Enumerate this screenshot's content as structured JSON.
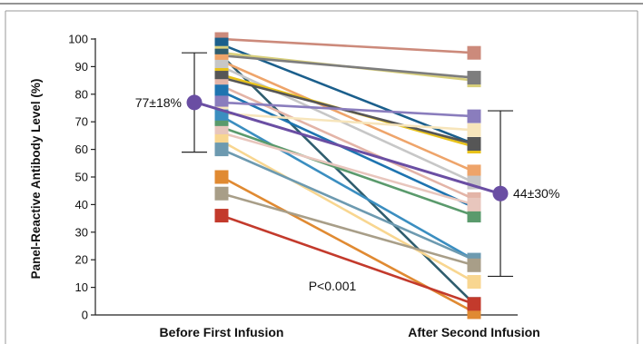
{
  "chart_data": {
    "type": "line",
    "title": "",
    "xlabel": "",
    "ylabel": "Panel-Reactive Antibody Level (%)",
    "categories": [
      "Before First Infusion",
      "After Second Infusion"
    ],
    "ylim": [
      0,
      100
    ],
    "yticks": [
      0,
      10,
      20,
      30,
      40,
      50,
      60,
      70,
      80,
      90,
      100
    ],
    "grid": false,
    "series": [
      {
        "values": [
          100,
          95
        ],
        "color": "#cc8a7b"
      },
      {
        "values": [
          98,
          62
        ],
        "color": "#1b5f8c"
      },
      {
        "values": [
          95,
          85
        ],
        "color": "#d8cf7a"
      },
      {
        "values": [
          94,
          86
        ],
        "color": "#7d7d7d"
      },
      {
        "values": [
          94,
          4
        ],
        "color": "#2f5d6e"
      },
      {
        "values": [
          92,
          52
        ],
        "color": "#eea46a"
      },
      {
        "values": [
          90,
          48
        ],
        "color": "#c7c7c7"
      },
      {
        "values": [
          87,
          61
        ],
        "color": "#e8c21a"
      },
      {
        "values": [
          86,
          62
        ],
        "color": "#565656"
      },
      {
        "values": [
          83,
          42
        ],
        "color": "#e3b4a7"
      },
      {
        "values": [
          81,
          39
        ],
        "color": "#1e74b0"
      },
      {
        "values": [
          77,
          72
        ],
        "color": "#8a7dbd"
      },
      {
        "values": [
          73,
          67
        ],
        "color": "#f7e5bb"
      },
      {
        "values": [
          72,
          20
        ],
        "color": "#3b8ec0"
      },
      {
        "values": [
          68,
          36
        ],
        "color": "#5a9a6c"
      },
      {
        "values": [
          66,
          40
        ],
        "color": "#e8c6bd"
      },
      {
        "values": [
          63,
          12
        ],
        "color": "#f8d690"
      },
      {
        "values": [
          60,
          20
        ],
        "color": "#6d9ab0"
      },
      {
        "values": [
          50,
          1
        ],
        "color": "#e08a32"
      },
      {
        "values": [
          44,
          18
        ],
        "color": "#a89e88"
      },
      {
        "values": [
          36,
          4
        ],
        "color": "#c33a2c"
      }
    ],
    "summary": [
      {
        "label": "77±18%",
        "mean": 77,
        "sd": 18
      },
      {
        "label": "44±30%",
        "mean": 44,
        "sd": 30
      }
    ],
    "summary_color": "#6a4ea3",
    "p_value_label": "P<0.001"
  }
}
